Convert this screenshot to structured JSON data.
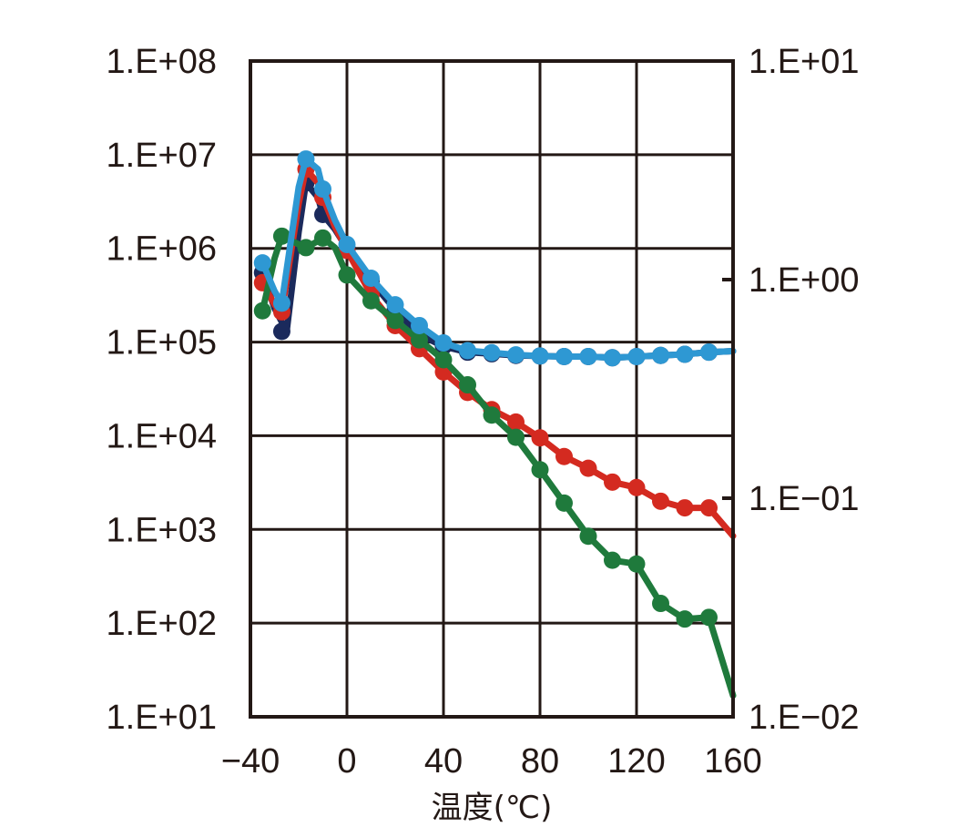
{
  "chart_data": {
    "type": "line",
    "title": "",
    "xlabel": "温度(℃)",
    "ylabel_left": "",
    "ylabel_right": "",
    "xlim": [
      -40,
      160
    ],
    "x_ticks": [
      -40,
      0,
      40,
      80,
      120,
      160
    ],
    "x_tick_labels": [
      "−40",
      "0",
      "40",
      "80",
      "120",
      "160"
    ],
    "ylim_left": [
      10,
      100000000
    ],
    "y_scale_left": "log",
    "y_ticks_left": [
      10,
      100,
      1000,
      10000,
      100000,
      1000000,
      10000000,
      100000000
    ],
    "y_tick_labels_left": [
      "1.E+01",
      "1.E+02",
      "1.E+03",
      "1.E+04",
      "1.E+05",
      "1.E+06",
      "1.E+07",
      "1.E+08"
    ],
    "ylim_right": [
      0.01,
      10
    ],
    "y_scale_right": "log",
    "y_ticks_right": [
      0.01,
      0.1,
      1,
      10
    ],
    "y_tick_labels_right": [
      "1.E−02",
      "1.E−01",
      "1.E+00",
      "1.E+01"
    ],
    "grid": true,
    "legend": "none",
    "series": [
      {
        "color": "#1b2a5c",
        "axis": "left",
        "x": [
          -35,
          -30,
          -25,
          -20,
          -17,
          -12,
          -10,
          -5,
          0,
          10,
          20,
          30,
          40,
          50,
          60,
          70,
          80,
          90,
          100,
          110,
          120,
          130,
          140,
          150,
          160
        ],
        "y": [
          550000,
          230000,
          130000,
          1500000,
          5000000,
          3500000,
          2300000,
          1600000,
          1000000,
          450000,
          220000,
          120000,
          90000,
          78000,
          75000,
          72000,
          71000,
          70000,
          70000,
          68000,
          70000,
          72000,
          74000,
          78000,
          80000
        ],
        "markers_x": [
          -35,
          -27,
          -17,
          -10,
          0,
          10,
          20,
          30,
          40,
          50,
          60,
          70,
          80,
          90,
          100,
          110,
          120,
          130,
          140,
          150
        ],
        "markers_y": [
          550000,
          130000,
          5000000,
          2300000,
          1000000,
          450000,
          220000,
          120000,
          90000,
          78000,
          75000,
          72000,
          71000,
          70000,
          70000,
          68000,
          70000,
          72000,
          74000,
          78000
        ]
      },
      {
        "color": "#d42a20",
        "axis": "left",
        "x": [
          -35,
          -30,
          -27,
          -20,
          -17,
          -12,
          -10,
          -5,
          0,
          10,
          20,
          30,
          40,
          50,
          60,
          70,
          80,
          90,
          100,
          110,
          120,
          130,
          140,
          150,
          160
        ],
        "y": [
          430000,
          250000,
          210000,
          3000000,
          7000000,
          5000000,
          3500000,
          1700000,
          950000,
          320000,
          150000,
          85000,
          48000,
          29000,
          19000,
          14000,
          9500,
          6000,
          4500,
          3200,
          2800,
          2000,
          1700,
          1700,
          850
        ],
        "markers_x": [
          -35,
          -27,
          -17,
          -10,
          0,
          10,
          20,
          30,
          40,
          50,
          60,
          70,
          80,
          90,
          100,
          110,
          120,
          130,
          140,
          150
        ],
        "markers_y": [
          430000,
          210000,
          7000000,
          3500000,
          950000,
          320000,
          150000,
          85000,
          48000,
          29000,
          19000,
          14000,
          9500,
          6000,
          4500,
          3200,
          2800,
          2000,
          1700,
          1700
        ]
      },
      {
        "color": "#1f7a3c",
        "axis": "right",
        "x": [
          -35,
          -30,
          -27,
          -20,
          -17,
          -12,
          -10,
          -5,
          0,
          10,
          20,
          30,
          40,
          50,
          60,
          70,
          80,
          90,
          100,
          110,
          120,
          130,
          140,
          150,
          160
        ],
        "y": [
          0.72,
          1.25,
          1.58,
          1.45,
          1.4,
          1.5,
          1.55,
          1.4,
          1.05,
          0.8,
          0.65,
          0.53,
          0.43,
          0.33,
          0.24,
          0.19,
          0.135,
          0.095,
          0.067,
          0.052,
          0.05,
          0.033,
          0.028,
          0.0285,
          0.0125
        ],
        "markers_x": [
          -35,
          -27,
          -17,
          -10,
          0,
          10,
          20,
          30,
          40,
          50,
          60,
          70,
          80,
          90,
          100,
          110,
          120,
          130,
          140,
          150
        ],
        "markers_y": [
          0.72,
          1.58,
          1.4,
          1.55,
          1.05,
          0.8,
          0.65,
          0.53,
          0.43,
          0.33,
          0.24,
          0.19,
          0.135,
          0.095,
          0.067,
          0.052,
          0.05,
          0.033,
          0.028,
          0.0285
        ]
      },
      {
        "color": "#2e98d3",
        "axis": "left",
        "x": [
          -35,
          -30,
          -27,
          -20,
          -17,
          -12,
          -10,
          -5,
          0,
          10,
          20,
          30,
          40,
          50,
          60,
          70,
          80,
          90,
          100,
          110,
          120,
          130,
          140,
          150,
          160
        ],
        "y": [
          700000,
          350000,
          260000,
          4500000,
          9000000,
          7000000,
          4300000,
          2000000,
          1100000,
          480000,
          250000,
          150000,
          98000,
          81000,
          77000,
          73000,
          71000,
          70000,
          70000,
          68000,
          70000,
          72000,
          74000,
          78000,
          80000
        ],
        "markers_x": [
          -35,
          -27,
          -17,
          -10,
          0,
          10,
          20,
          30,
          40,
          50,
          60,
          70,
          80,
          90,
          100,
          110,
          120,
          130,
          140,
          150
        ],
        "markers_y": [
          700000,
          260000,
          9000000,
          4300000,
          1100000,
          480000,
          250000,
          150000,
          98000,
          81000,
          77000,
          73000,
          71000,
          70000,
          70000,
          68000,
          70000,
          72000,
          74000,
          78000
        ]
      }
    ]
  }
}
